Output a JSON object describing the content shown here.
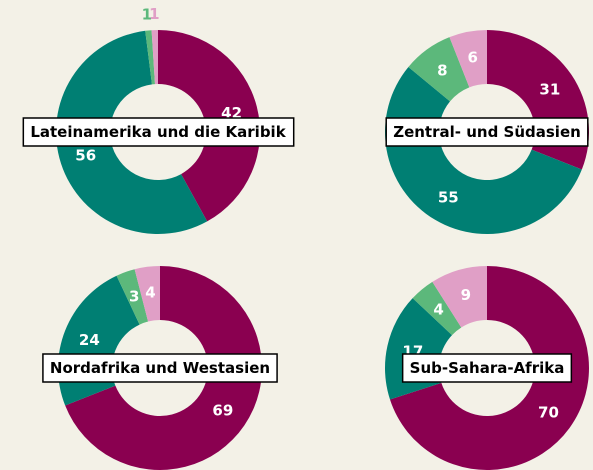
{
  "chart_data": [
    {
      "type": "donut",
      "title": "Lateinamerika und die Karibik",
      "values": [
        42,
        56,
        1,
        1
      ],
      "colors": [
        "#8a0050",
        "#007f73",
        "#5cb87b",
        "#e09fc6"
      ]
    },
    {
      "type": "donut",
      "title": "Zentral- und Südasien",
      "values": [
        31,
        55,
        8,
        6
      ],
      "colors": [
        "#8a0050",
        "#007f73",
        "#5cb87b",
        "#e09fc6"
      ]
    },
    {
      "type": "donut",
      "title": "Nordafrika und Westasien",
      "values": [
        69,
        24,
        3,
        4
      ],
      "colors": [
        "#8a0050",
        "#007f73",
        "#5cb87b",
        "#e09fc6"
      ]
    },
    {
      "type": "donut",
      "title": "Sub-Sahara-Afrika",
      "values": [
        70,
        17,
        4,
        9
      ],
      "colors": [
        "#8a0050",
        "#007f73",
        "#5cb87b",
        "#e09fc6"
      ]
    }
  ]
}
